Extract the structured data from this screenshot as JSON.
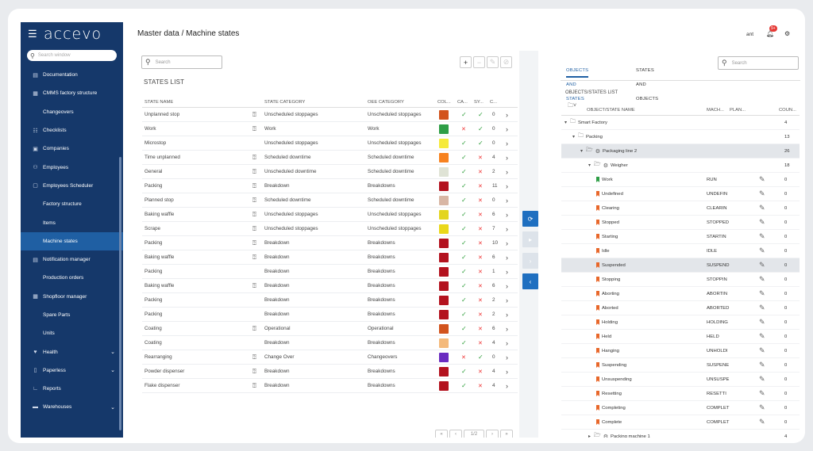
{
  "app": {
    "logo": "accevo",
    "title": "Master data / Machine states",
    "user": "ant",
    "notif_badge": "9+"
  },
  "sidebar": {
    "search_placeholder": "Search window",
    "items": [
      {
        "label": "Documentation",
        "icon": "document-icon",
        "sub": false
      },
      {
        "label": "CMMS factory structure",
        "icon": "factory-icon",
        "sub": false
      },
      {
        "label": "Changeovers",
        "icon": "",
        "sub": true
      },
      {
        "label": "Checklists",
        "icon": "checklist-icon",
        "sub": false
      },
      {
        "label": "Companies",
        "icon": "company-icon",
        "sub": false
      },
      {
        "label": "Employees",
        "icon": "employees-icon",
        "sub": false
      },
      {
        "label": "Employees Scheduler",
        "icon": "calendar-icon",
        "sub": false
      },
      {
        "label": "Factory structure",
        "icon": "",
        "sub": true
      },
      {
        "label": "Items",
        "icon": "",
        "sub": true
      },
      {
        "label": "Machine states",
        "icon": "",
        "sub": true,
        "active": true
      },
      {
        "label": "Notification manager",
        "icon": "notification-icon",
        "sub": false
      },
      {
        "label": "Production orders",
        "icon": "",
        "sub": true
      },
      {
        "label": "Shopfloor manager",
        "icon": "shopfloor-icon",
        "sub": false
      },
      {
        "label": "Spare Parts",
        "icon": "",
        "sub": true
      },
      {
        "label": "Units",
        "icon": "",
        "sub": true
      },
      {
        "label": "Health",
        "icon": "health-icon",
        "sub": false,
        "chevron": true
      },
      {
        "label": "Paperless",
        "icon": "paperless-icon",
        "sub": false,
        "chevron": true
      },
      {
        "label": "Reports",
        "icon": "reports-icon",
        "sub": false
      },
      {
        "label": "Warehouses",
        "icon": "warehouse-icon",
        "sub": false,
        "chevron": true
      }
    ]
  },
  "states": {
    "search_placeholder": "Search",
    "list_title": "STATES LIST",
    "headers": {
      "name": "STATE NAME",
      "category": "STATE CATEGORY",
      "oee": "OEE CATEGORY",
      "col": "COL...",
      "ca": "CA...",
      "sy": "SY...",
      "c": "C..."
    },
    "rows": [
      {
        "name": "Unplanned stop",
        "q": true,
        "cat": "Unscheduled stoppages",
        "oee": "Unscheduled stoppages",
        "color": "#d2531d",
        "ca": true,
        "sy": true,
        "cnt": "0"
      },
      {
        "name": "Work",
        "q": true,
        "cat": "Work",
        "oee": "Work",
        "color": "#2e9e46",
        "ca": false,
        "sy": true,
        "cnt": "0"
      },
      {
        "name": "Microstop",
        "q": false,
        "cat": "Unscheduled stoppages",
        "oee": "Unscheduled stoppages",
        "color": "#f5ea3b",
        "ca": true,
        "sy": true,
        "cnt": "0"
      },
      {
        "name": "Time unplanned",
        "q": true,
        "cat": "Scheduled downtime",
        "oee": "Scheduled downtime",
        "color": "#f7821f",
        "ca": true,
        "sy": false,
        "cnt": "4"
      },
      {
        "name": "General",
        "q": true,
        "cat": "Unscheduled downtime",
        "oee": "Scheduled downtime",
        "color": "#dfe3d5",
        "ca": true,
        "sy": false,
        "cnt": "2"
      },
      {
        "name": "Packing",
        "q": true,
        "cat": "Breakdown",
        "oee": "Breakdowns",
        "color": "#b3121e",
        "ca": true,
        "sy": false,
        "cnt": "11"
      },
      {
        "name": "Planned stop",
        "q": true,
        "cat": "Scheduled downtime",
        "oee": "Scheduled downtime",
        "color": "#d8b6a4",
        "ca": true,
        "sy": false,
        "cnt": "0"
      },
      {
        "name": "Baking waffle",
        "q": true,
        "cat": "Unscheduled stoppages",
        "oee": "Unscheduled stoppages",
        "color": "#e3d51f",
        "ca": true,
        "sy": false,
        "cnt": "6"
      },
      {
        "name": "Scrape",
        "q": true,
        "cat": "Unscheduled stoppages",
        "oee": "Unscheduled stoppages",
        "color": "#ead81a",
        "ca": true,
        "sy": false,
        "cnt": "7"
      },
      {
        "name": "Packing",
        "q": true,
        "cat": "Breakdown",
        "oee": "Breakdowns",
        "color": "#b3121e",
        "ca": true,
        "sy": false,
        "cnt": "10"
      },
      {
        "name": "Baking waffle",
        "q": true,
        "cat": "Breakdown",
        "oee": "Breakdowns",
        "color": "#b3121e",
        "ca": true,
        "sy": false,
        "cnt": "6"
      },
      {
        "name": "Packing",
        "q": false,
        "cat": "Breakdown",
        "oee": "Breakdowns",
        "color": "#b3121e",
        "ca": true,
        "sy": false,
        "cnt": "1"
      },
      {
        "name": "Baking waffle",
        "q": true,
        "cat": "Breakdown",
        "oee": "Breakdowns",
        "color": "#b3121e",
        "ca": true,
        "sy": false,
        "cnt": "6"
      },
      {
        "name": "Packing",
        "q": false,
        "cat": "Breakdown",
        "oee": "Breakdowns",
        "color": "#b3121e",
        "ca": true,
        "sy": false,
        "cnt": "2"
      },
      {
        "name": "Packing",
        "q": false,
        "cat": "Breakdown",
        "oee": "Breakdowns",
        "color": "#b3121e",
        "ca": true,
        "sy": false,
        "cnt": "2"
      },
      {
        "name": "Coating",
        "q": true,
        "cat": "Operational",
        "oee": "Operational",
        "color": "#d2531d",
        "ca": true,
        "sy": false,
        "cnt": "6"
      },
      {
        "name": "Coating",
        "q": false,
        "cat": "Breakdown",
        "oee": "Breakdowns",
        "color": "#f4b97a",
        "ca": true,
        "sy": false,
        "cnt": "4"
      },
      {
        "name": "Rearranging",
        "q": true,
        "cat": "Change Over",
        "oee": "Changeovers",
        "color": "#6a2cc0",
        "ca": false,
        "sy": true,
        "cnt": "0"
      },
      {
        "name": "Powder dispenser",
        "q": true,
        "cat": "Breakdown",
        "oee": "Breakdowns",
        "color": "#b3121e",
        "ca": true,
        "sy": false,
        "cnt": "4"
      },
      {
        "name": "Flake dispenser",
        "q": true,
        "cat": "Breakdown",
        "oee": "Breakdowns",
        "color": "#b3121e",
        "ca": true,
        "sy": false,
        "cnt": "4"
      }
    ],
    "pager": "1/2"
  },
  "objects": {
    "tabs": [
      "OBJECTS AND STATES",
      "STATES AND OBJECTS"
    ],
    "search_placeholder": "Search",
    "sub_title": "OBJECTS/STATES LIST",
    "headers": {
      "name": "OBJECT/STATE NAME",
      "mach": "MACH...",
      "plan": "PLAN...",
      "cnt": "COUN..."
    },
    "tree": [
      {
        "label": "Smart Factory",
        "level": 0,
        "kind": "folder",
        "cnt": "4"
      },
      {
        "label": "Packing",
        "level": 1,
        "kind": "folder",
        "cnt": "13"
      },
      {
        "label": "Packaging line 2",
        "level": 2,
        "kind": "machine",
        "cnt": "26",
        "hl": true
      },
      {
        "label": "Weigher",
        "level": 3,
        "kind": "machine",
        "cnt": "18"
      },
      {
        "label": "Work",
        "level": 4,
        "kind": "state",
        "color": "#2e9e46",
        "mach": "RUN",
        "cnt": "0"
      },
      {
        "label": "Undefined",
        "level": 4,
        "kind": "state",
        "color": "#e8672a",
        "mach": "UNDEFIN",
        "cnt": "0"
      },
      {
        "label": "Clearing",
        "level": 4,
        "kind": "state",
        "color": "#e8672a",
        "mach": "CLEARIN",
        "cnt": "0"
      },
      {
        "label": "Stopped",
        "level": 4,
        "kind": "state",
        "color": "#e8672a",
        "mach": "STOPPED",
        "cnt": "0"
      },
      {
        "label": "Starting",
        "level": 4,
        "kind": "state",
        "color": "#e8672a",
        "mach": "STARTIN",
        "cnt": "0"
      },
      {
        "label": "Idle",
        "level": 4,
        "kind": "state",
        "color": "#e8672a",
        "mach": "IDLE",
        "cnt": "0"
      },
      {
        "label": "Suspended",
        "level": 4,
        "kind": "state",
        "color": "#e8672a",
        "mach": "SUSPEND",
        "cnt": "0",
        "hl": true
      },
      {
        "label": "Stopping",
        "level": 4,
        "kind": "state",
        "color": "#e8672a",
        "mach": "STOPPIN",
        "cnt": "0"
      },
      {
        "label": "Aborting",
        "level": 4,
        "kind": "state",
        "color": "#e8672a",
        "mach": "ABORTIN",
        "cnt": "0"
      },
      {
        "label": "Aborted",
        "level": 4,
        "kind": "state",
        "color": "#e8672a",
        "mach": "ABORTED",
        "cnt": "0"
      },
      {
        "label": "Holding",
        "level": 4,
        "kind": "state",
        "color": "#e8672a",
        "mach": "HOLDING",
        "cnt": "0"
      },
      {
        "label": "Held",
        "level": 4,
        "kind": "state",
        "color": "#e8672a",
        "mach": "HELD",
        "cnt": "0"
      },
      {
        "label": "Hanging",
        "level": 4,
        "kind": "state",
        "color": "#e8672a",
        "mach": "UNHOLDI",
        "cnt": "0"
      },
      {
        "label": "Suspending",
        "level": 4,
        "kind": "state",
        "color": "#e8672a",
        "mach": "SUSPENE",
        "cnt": "0"
      },
      {
        "label": "Unsuspending",
        "level": 4,
        "kind": "state",
        "color": "#e8672a",
        "mach": "UNSUSPE",
        "cnt": "0"
      },
      {
        "label": "Resetting",
        "level": 4,
        "kind": "state",
        "color": "#e8672a",
        "mach": "RESETTI",
        "cnt": "0"
      },
      {
        "label": "Completing",
        "level": 4,
        "kind": "state",
        "color": "#e8672a",
        "mach": "COMPLET",
        "cnt": "0"
      },
      {
        "label": "Complete",
        "level": 4,
        "kind": "state",
        "color": "#e8672a",
        "mach": "COMPLET",
        "cnt": "0"
      },
      {
        "label": "Packing machine 1",
        "level": 3,
        "kind": "machine-collapsed",
        "cnt": "4"
      }
    ]
  }
}
